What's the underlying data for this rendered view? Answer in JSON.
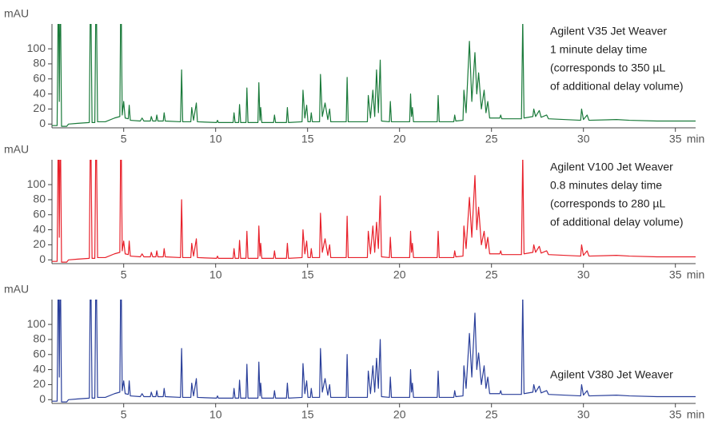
{
  "chart_data": [
    {
      "type": "line",
      "ylabel": "mAU",
      "xlabel": "min",
      "color": "#1a7a3a",
      "annotation": [
        "Agilent V35 Jet Weaver",
        "1 minute delay time",
        "(corresponds to 350 µL",
        "of additional delay volume)"
      ],
      "xlim": [
        1.1,
        36.1
      ],
      "xticks": [
        5,
        10,
        15,
        20,
        25,
        30,
        35
      ],
      "ylim": [
        -5,
        133
      ],
      "yticks": [
        0,
        20,
        40,
        60,
        80,
        100
      ],
      "x": [
        1.1,
        1.38,
        1.45,
        1.5,
        1.55,
        1.62,
        1.9,
        2.0,
        2.5,
        3.13,
        3.2,
        3.28,
        3.43,
        3.5,
        3.58,
        4.0,
        4.5,
        4.79,
        4.85,
        4.92,
        5.0,
        5.08,
        5.25,
        5.3,
        5.36,
        5.9,
        6.0,
        6.1,
        6.45,
        6.5,
        6.58,
        6.75,
        6.8,
        6.86,
        7.15,
        7.2,
        7.26,
        8.09,
        8.15,
        8.21,
        8.65,
        8.7,
        8.8,
        8.95,
        9.01,
        10.05,
        10.1,
        10.15,
        10.95,
        11.0,
        11.06,
        11.25,
        11.3,
        11.36,
        11.65,
        11.7,
        11.76,
        12.3,
        12.35,
        12.41,
        12.45,
        12.51,
        13.15,
        13.2,
        13.26,
        13.85,
        13.9,
        13.96,
        14.7,
        14.75,
        14.85,
        14.95,
        15.02,
        15.15,
        15.2,
        15.26,
        15.65,
        15.7,
        15.8,
        15.95,
        16.1,
        16.2,
        16.26,
        17.1,
        17.15,
        17.21,
        18.25,
        18.3,
        18.42,
        18.55,
        18.65,
        18.75,
        18.85,
        18.95,
        19.02,
        19.45,
        19.5,
        19.56,
        20.55,
        20.6,
        20.65,
        20.7,
        20.76,
        22.05,
        22.1,
        22.16,
        22.95,
        23.0,
        23.06,
        23.45,
        23.5,
        23.62,
        23.8,
        23.93,
        24.1,
        24.2,
        24.3,
        24.45,
        24.6,
        24.7,
        24.8,
        24.9,
        25.45,
        25.5,
        25.56,
        26.63,
        26.7,
        26.77,
        27.25,
        27.3,
        27.4,
        27.6,
        27.7,
        28.0,
        28.1,
        29.85,
        29.9,
        30.0,
        30.2,
        30.3,
        31.8,
        32.5,
        34,
        36.1
      ],
      "values": [
        -2,
        -2,
        200,
        30,
        200,
        -3,
        -3,
        0,
        1,
        2,
        200,
        2,
        2,
        200,
        3,
        3,
        8,
        10,
        200,
        12,
        30,
        8,
        7,
        25,
        5,
        4,
        8,
        4,
        4,
        10,
        4,
        4,
        12,
        4,
        4,
        15,
        4,
        3,
        72,
        3,
        3,
        22,
        5,
        28,
        3,
        2,
        5,
        2,
        2,
        15,
        2,
        2,
        26,
        2,
        2,
        48,
        2,
        2,
        55,
        5,
        22,
        2,
        2,
        12,
        2,
        2,
        22,
        2,
        3,
        45,
        8,
        25,
        3,
        3,
        15,
        3,
        3,
        66,
        10,
        28,
        6,
        20,
        3,
        3,
        62,
        3,
        3,
        38,
        8,
        45,
        10,
        72,
        15,
        85,
        4,
        3,
        30,
        3,
        3,
        40,
        10,
        22,
        3,
        3,
        38,
        3,
        3,
        12,
        4,
        5,
        45,
        15,
        110,
        30,
        95,
        40,
        68,
        20,
        45,
        15,
        30,
        8,
        8,
        12,
        7,
        7,
        140,
        8,
        10,
        20,
        10,
        18,
        9,
        12,
        7,
        5,
        20,
        6,
        12,
        5,
        6,
        5,
        4,
        4
      ]
    },
    {
      "type": "line",
      "ylabel": "mAU",
      "xlabel": "min",
      "color": "#e8202a",
      "annotation": [
        "Agilent V100 Jet Weaver",
        "0.8 minutes delay time",
        "(corresponds to 280 µL",
        "of additional delay volume)"
      ],
      "xlim": [
        1.1,
        36.1
      ],
      "xticks": [
        5,
        10,
        15,
        20,
        25,
        30,
        35
      ],
      "ylim": [
        -5,
        133
      ],
      "yticks": [
        0,
        20,
        40,
        60,
        80,
        100
      ],
      "x": [
        1.1,
        1.38,
        1.45,
        1.5,
        1.55,
        1.62,
        1.9,
        2.0,
        2.5,
        3.13,
        3.2,
        3.28,
        3.43,
        3.5,
        3.58,
        4.0,
        4.5,
        4.79,
        4.85,
        4.92,
        5.0,
        5.08,
        5.25,
        5.3,
        5.36,
        5.9,
        6.0,
        6.1,
        6.45,
        6.5,
        6.58,
        6.75,
        6.8,
        6.86,
        7.15,
        7.2,
        7.26,
        8.09,
        8.15,
        8.21,
        8.65,
        8.7,
        8.8,
        8.95,
        9.01,
        10.05,
        10.1,
        10.15,
        10.95,
        11.0,
        11.06,
        11.25,
        11.3,
        11.36,
        11.65,
        11.7,
        11.76,
        12.3,
        12.35,
        12.41,
        12.45,
        12.51,
        13.15,
        13.2,
        13.26,
        13.85,
        13.9,
        13.96,
        14.7,
        14.75,
        14.85,
        14.95,
        15.02,
        15.15,
        15.2,
        15.26,
        15.65,
        15.7,
        15.8,
        15.95,
        16.1,
        16.2,
        16.26,
        17.1,
        17.15,
        17.21,
        18.25,
        18.3,
        18.42,
        18.55,
        18.65,
        18.75,
        18.85,
        18.95,
        19.02,
        19.45,
        19.5,
        19.56,
        20.55,
        20.6,
        20.65,
        20.7,
        20.76,
        22.05,
        22.1,
        22.16,
        22.95,
        23.0,
        23.06,
        23.45,
        23.5,
        23.62,
        23.8,
        23.93,
        24.1,
        24.2,
        24.3,
        24.45,
        24.6,
        24.7,
        24.8,
        24.9,
        25.45,
        25.5,
        25.56,
        26.63,
        26.7,
        26.77,
        27.25,
        27.3,
        27.4,
        27.6,
        27.7,
        28.0,
        28.1,
        29.85,
        29.9,
        30.0,
        30.2,
        30.3,
        31.8,
        32.5,
        34,
        36.1
      ],
      "values": [
        -2,
        -2,
        200,
        30,
        200,
        -3,
        -3,
        0,
        1,
        2,
        200,
        2,
        2,
        200,
        3,
        3,
        8,
        10,
        200,
        12,
        25,
        8,
        7,
        25,
        5,
        4,
        8,
        4,
        4,
        10,
        4,
        4,
        12,
        4,
        4,
        15,
        4,
        3,
        80,
        3,
        3,
        22,
        5,
        28,
        3,
        2,
        5,
        2,
        2,
        15,
        2,
        2,
        26,
        2,
        2,
        38,
        2,
        2,
        45,
        5,
        22,
        2,
        2,
        12,
        2,
        2,
        22,
        2,
        3,
        40,
        8,
        25,
        3,
        3,
        15,
        3,
        3,
        62,
        10,
        28,
        6,
        20,
        3,
        3,
        58,
        3,
        3,
        38,
        8,
        45,
        10,
        50,
        15,
        85,
        4,
        3,
        30,
        3,
        3,
        38,
        10,
        22,
        3,
        3,
        38,
        3,
        3,
        12,
        4,
        5,
        45,
        15,
        83,
        30,
        112,
        40,
        70,
        20,
        38,
        15,
        30,
        8,
        8,
        12,
        7,
        7,
        140,
        8,
        10,
        20,
        10,
        18,
        9,
        12,
        7,
        5,
        20,
        6,
        12,
        5,
        6,
        5,
        4,
        4
      ]
    },
    {
      "type": "line",
      "ylabel": "mAU",
      "xlabel": "min",
      "color": "#2a3f9a",
      "annotation": [
        "Agilent V380 Jet Weaver"
      ],
      "xlim": [
        1.1,
        36.1
      ],
      "xticks": [
        5,
        10,
        15,
        20,
        25,
        30,
        35
      ],
      "ylim": [
        -5,
        133
      ],
      "yticks": [
        0,
        20,
        40,
        60,
        80,
        100
      ],
      "x": [
        1.1,
        1.38,
        1.45,
        1.5,
        1.55,
        1.62,
        1.9,
        2.0,
        2.5,
        3.13,
        3.2,
        3.28,
        3.43,
        3.5,
        3.58,
        4.0,
        4.5,
        4.79,
        4.85,
        4.92,
        5.0,
        5.08,
        5.25,
        5.3,
        5.36,
        5.9,
        6.0,
        6.1,
        6.45,
        6.5,
        6.58,
        6.75,
        6.8,
        6.86,
        7.15,
        7.2,
        7.26,
        8.09,
        8.15,
        8.21,
        8.65,
        8.7,
        8.8,
        8.95,
        9.01,
        10.05,
        10.1,
        10.15,
        10.95,
        11.0,
        11.06,
        11.25,
        11.3,
        11.36,
        11.65,
        11.7,
        11.76,
        12.3,
        12.35,
        12.41,
        12.45,
        12.51,
        13.15,
        13.2,
        13.26,
        13.85,
        13.9,
        13.96,
        14.7,
        14.75,
        14.85,
        14.95,
        15.02,
        15.15,
        15.2,
        15.26,
        15.65,
        15.7,
        15.8,
        15.95,
        16.1,
        16.2,
        16.26,
        17.1,
        17.15,
        17.21,
        18.25,
        18.3,
        18.42,
        18.55,
        18.65,
        18.75,
        18.85,
        18.95,
        19.02,
        19.45,
        19.5,
        19.56,
        20.55,
        20.6,
        20.65,
        20.7,
        20.76,
        22.05,
        22.1,
        22.16,
        22.95,
        23.0,
        23.06,
        23.45,
        23.5,
        23.62,
        23.8,
        23.93,
        24.1,
        24.2,
        24.3,
        24.45,
        24.6,
        24.7,
        24.8,
        24.9,
        25.45,
        25.5,
        25.56,
        26.63,
        26.7,
        26.77,
        27.25,
        27.3,
        27.4,
        27.6,
        27.7,
        28.0,
        28.1,
        29.85,
        29.9,
        30.0,
        30.2,
        30.3,
        31.8,
        32.5,
        34,
        36.1
      ],
      "values": [
        -2,
        -2,
        200,
        30,
        200,
        -3,
        -3,
        0,
        1,
        2,
        200,
        2,
        2,
        200,
        3,
        3,
        8,
        10,
        200,
        12,
        25,
        8,
        7,
        25,
        5,
        4,
        8,
        4,
        4,
        10,
        4,
        4,
        12,
        4,
        4,
        15,
        4,
        3,
        68,
        3,
        3,
        22,
        5,
        28,
        3,
        2,
        5,
        2,
        2,
        15,
        2,
        2,
        26,
        2,
        2,
        47,
        2,
        2,
        50,
        5,
        22,
        2,
        2,
        12,
        2,
        2,
        22,
        2,
        3,
        48,
        8,
        25,
        3,
        3,
        15,
        3,
        3,
        68,
        10,
        28,
        6,
        20,
        3,
        3,
        60,
        3,
        3,
        38,
        8,
        45,
        10,
        55,
        15,
        80,
        4,
        3,
        30,
        3,
        3,
        40,
        10,
        22,
        3,
        3,
        38,
        3,
        3,
        12,
        4,
        5,
        45,
        15,
        88,
        30,
        115,
        40,
        62,
        20,
        45,
        15,
        30,
        8,
        8,
        12,
        7,
        7,
        140,
        8,
        10,
        20,
        10,
        18,
        9,
        12,
        7,
        5,
        20,
        6,
        12,
        5,
        6,
        5,
        4,
        4
      ]
    }
  ]
}
